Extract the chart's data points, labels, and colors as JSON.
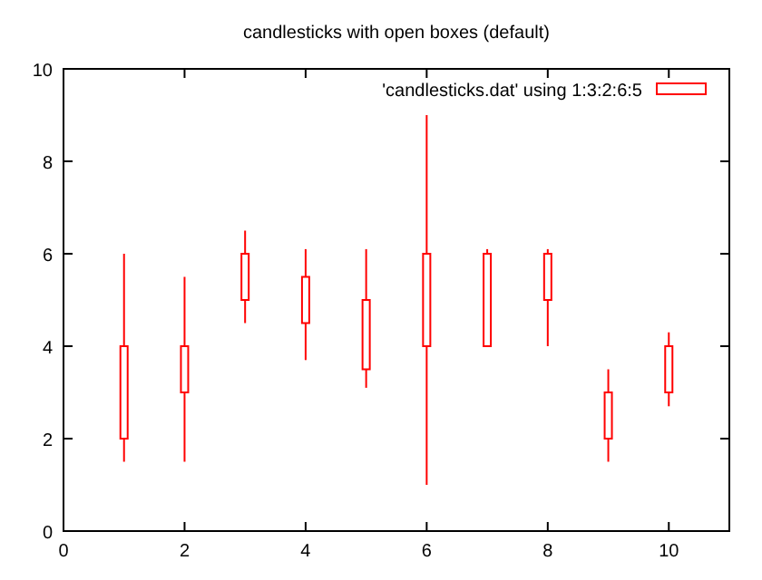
{
  "chart_data": {
    "type": "candlestick",
    "title": "candlesticks with open boxes (default)",
    "x": [
      1,
      2,
      3,
      4,
      5,
      6,
      7,
      8,
      9,
      10
    ],
    "series": [
      {
        "name": "'candlesticks.dat' using 1:3:2:6:5",
        "color": "#ff0000",
        "ohlc": [
          [
            2,
            6,
            1.5,
            4
          ],
          [
            3,
            5.5,
            1.5,
            4
          ],
          [
            5,
            6.5,
            4.5,
            6
          ],
          [
            4.5,
            6.1,
            3.7,
            5.5
          ],
          [
            3.5,
            6.1,
            3.1,
            5
          ],
          [
            4,
            9,
            1,
            6
          ],
          [
            4,
            6.1,
            4,
            6
          ],
          [
            5,
            6.1,
            4,
            6
          ],
          [
            2,
            3.5,
            1.5,
            3
          ],
          [
            3,
            4.3,
            2.7,
            4
          ]
        ]
      }
    ],
    "xlim": [
      0,
      11
    ],
    "xticks": [
      0,
      2,
      4,
      6,
      8,
      10
    ],
    "ylim": [
      0,
      10
    ],
    "yticks": [
      0,
      2,
      4,
      6,
      8,
      10
    ],
    "legend": "top right"
  }
}
